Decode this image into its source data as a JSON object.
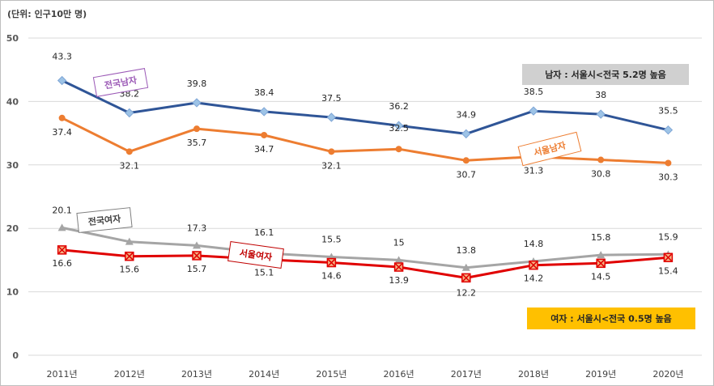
{
  "unit_label": "(단위: 인구10만 명)",
  "chart_data": {
    "type": "line",
    "categories": [
      "2011년",
      "2012년",
      "2013년",
      "2014년",
      "2015년",
      "2016년",
      "2017년",
      "2018년",
      "2019년",
      "2020년"
    ],
    "ylim": [
      0,
      50
    ],
    "yticks": [
      0,
      10,
      20,
      30,
      40,
      50
    ],
    "grid": true,
    "series": [
      {
        "name": "전국남자",
        "color": "#2f5597",
        "marker": "diamond",
        "marker_color": "#9dc3e6",
        "values": [
          43.3,
          38.2,
          39.8,
          38.4,
          37.5,
          36.2,
          34.9,
          38.5,
          38,
          35.5
        ],
        "labels": [
          "43.3",
          "38.2",
          "39.8",
          "38.4",
          "37.5",
          "36.2",
          "34.9",
          "38.5",
          "38",
          "35.5"
        ]
      },
      {
        "name": "서울남자",
        "color": "#ed7d31",
        "marker": "circle",
        "marker_color": "#ed7d31",
        "values": [
          37.4,
          32.1,
          35.7,
          34.7,
          32.1,
          32.5,
          30.7,
          31.3,
          30.8,
          30.3
        ],
        "labels": [
          "37.4",
          "32.1",
          "35.7",
          "34.7",
          "32.1",
          "32.5",
          "30.7",
          "31.3",
          "30.8",
          "30.3"
        ]
      },
      {
        "name": "전국여자",
        "color": "#a5a5a5",
        "marker": "triangle",
        "marker_color": "#a5a5a5",
        "values": [
          20.1,
          17.9,
          17.3,
          16.1,
          15.5,
          15,
          13.8,
          14.8,
          15.8,
          15.9
        ],
        "labels": [
          "20.1",
          "",
          "17.3",
          "16.1",
          "15.5",
          "15",
          "13.8",
          "14.8",
          "15.8",
          "15.9"
        ]
      },
      {
        "name": "서울여자",
        "color": "#e00000",
        "marker": "x-square",
        "marker_color": "#f4b183",
        "values": [
          16.6,
          15.6,
          15.7,
          15.1,
          14.6,
          13.9,
          12.2,
          14.2,
          14.5,
          15.4
        ],
        "labels": [
          "16.6",
          "15.6",
          "15.7",
          "15.1",
          "14.6",
          "13.9",
          "12.2",
          "14.2",
          "14.5",
          "15.4"
        ]
      }
    ],
    "annotations": [
      {
        "text": "남자 : 서울시<전국 5.2명 높음",
        "background": "#d0d0d0"
      },
      {
        "text": "여자 : 서울시<전국 0.5명 높음",
        "background": "#ffc000"
      }
    ]
  }
}
